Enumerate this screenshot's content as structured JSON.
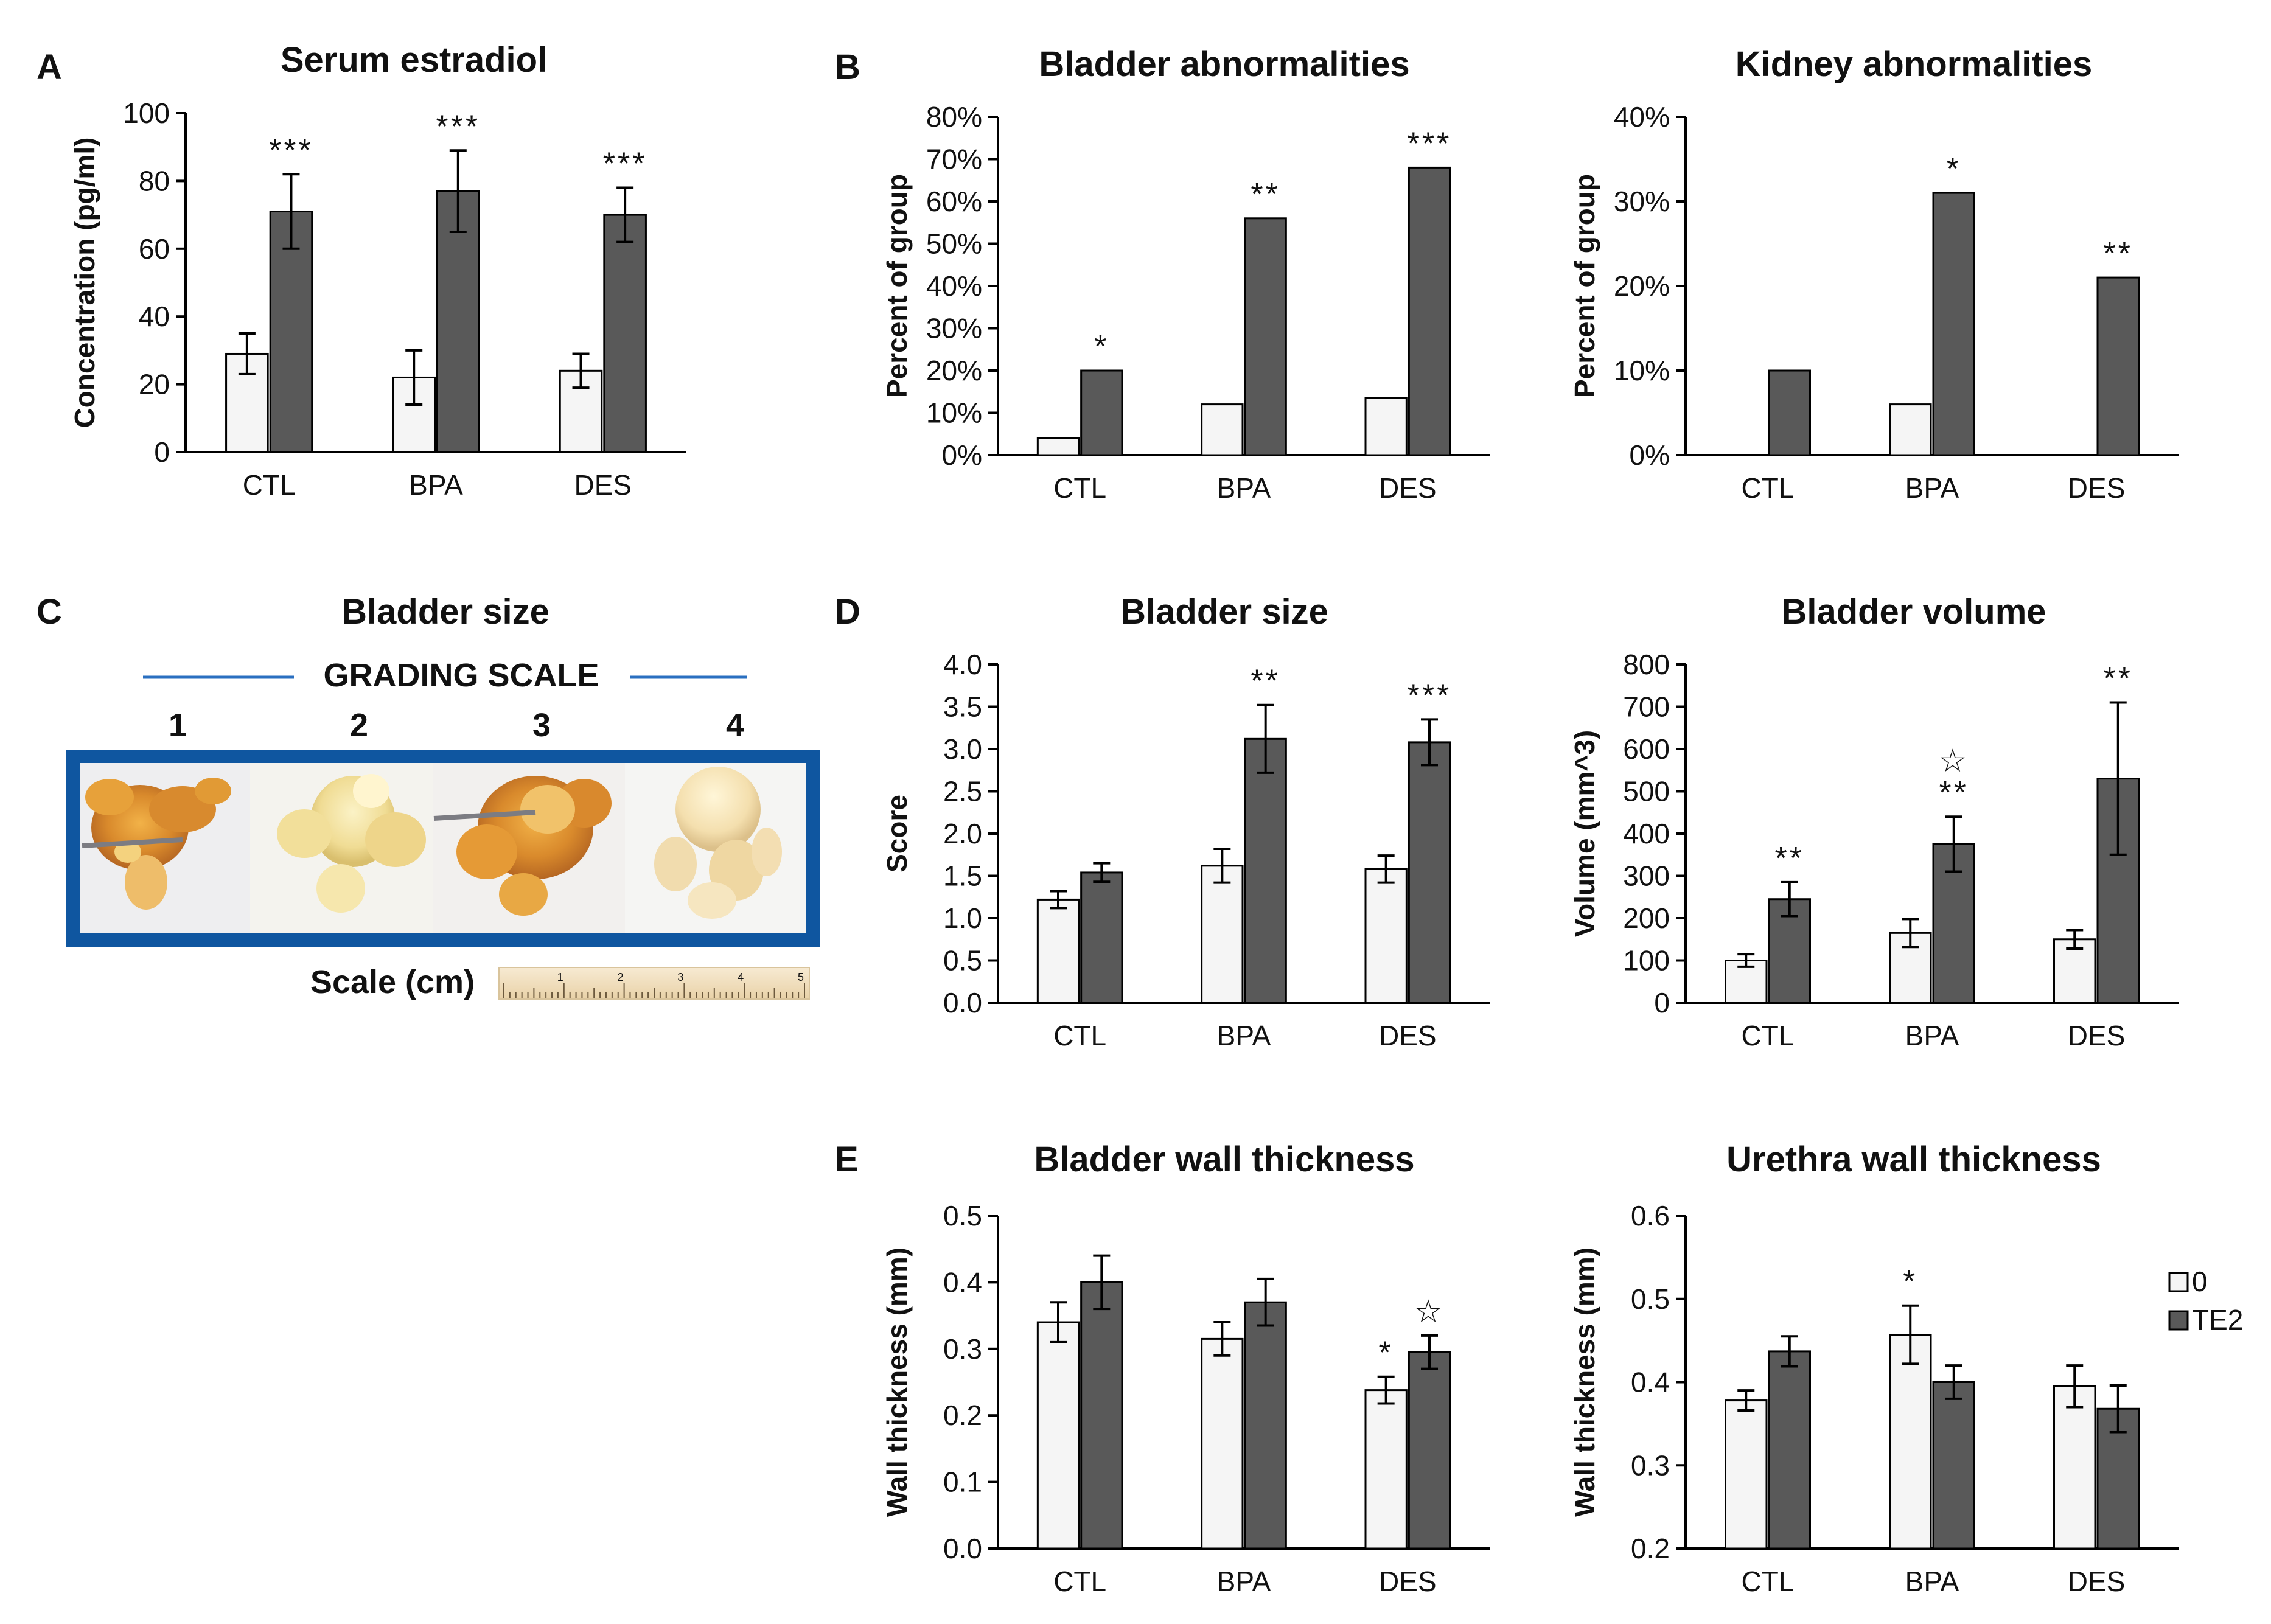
{
  "panel_letters": {
    "A": "A",
    "B": "B",
    "C": "C",
    "D": "D",
    "E": "E"
  },
  "legend": {
    "items": [
      {
        "label": "0",
        "color": "#f5f5f5"
      },
      {
        "label": "TE2",
        "color": "#595959"
      }
    ]
  },
  "colors": {
    "control_bar": "#f5f5f5",
    "treated_bar": "#595959",
    "frame_blue": "#0f56a0",
    "rule_blue": "#2a6fc0"
  },
  "panel_c": {
    "title": "Bladder size",
    "grading_label": "GRADING SCALE",
    "grades": [
      "1",
      "2",
      "3",
      "4"
    ],
    "scale_label": "Scale (cm)",
    "ruler_marks": [
      "1",
      "2",
      "3",
      "4",
      "5"
    ]
  },
  "chart_data": [
    {
      "id": "serum-estradiol",
      "type": "bar",
      "title": "Serum estradiol",
      "ylabel": "Concentration (pg/ml)",
      "categories": [
        "CTL",
        "BPA",
        "DES"
      ],
      "ylim": [
        0,
        100
      ],
      "yticks": [
        "0",
        "20",
        "40",
        "60",
        "80",
        "100"
      ],
      "series": [
        {
          "name": "0",
          "values": [
            29,
            22,
            24
          ],
          "errors": [
            6,
            8,
            5
          ]
        },
        {
          "name": "TE2",
          "values": [
            71,
            77,
            70
          ],
          "errors": [
            11,
            12,
            8
          ]
        }
      ],
      "annotations": [
        {
          "category": 0,
          "series": 1,
          "text": "***"
        },
        {
          "category": 1,
          "series": 1,
          "text": "***"
        },
        {
          "category": 2,
          "series": 1,
          "text": "***"
        }
      ]
    },
    {
      "id": "bladder-abnormalities",
      "type": "bar",
      "title": "Bladder abnormalities",
      "ylabel": "Percent of group",
      "categories": [
        "CTL",
        "BPA",
        "DES"
      ],
      "ylim": [
        0,
        80
      ],
      "yticks": [
        "0%",
        "10%",
        "20%",
        "30%",
        "40%",
        "50%",
        "60%",
        "70%",
        "80%"
      ],
      "series": [
        {
          "name": "0",
          "values": [
            4,
            12,
            13.5
          ]
        },
        {
          "name": "TE2",
          "values": [
            20,
            56,
            68
          ]
        }
      ],
      "annotations": [
        {
          "category": 0,
          "series": 1,
          "text": "*"
        },
        {
          "category": 1,
          "series": 1,
          "text": "**"
        },
        {
          "category": 2,
          "series": 1,
          "text": "***"
        }
      ]
    },
    {
      "id": "kidney-abnormalities",
      "type": "bar",
      "title": "Kidney abnormalities",
      "ylabel": "Percent of group",
      "categories": [
        "CTL",
        "BPA",
        "DES"
      ],
      "ylim": [
        0,
        40
      ],
      "yticks": [
        "0%",
        "10%",
        "20%",
        "30%",
        "40%"
      ],
      "series": [
        {
          "name": "0",
          "values": [
            0,
            6,
            0
          ]
        },
        {
          "name": "TE2",
          "values": [
            10,
            31,
            21
          ]
        }
      ],
      "annotations": [
        {
          "category": 1,
          "series": 1,
          "text": "*"
        },
        {
          "category": 2,
          "series": 1,
          "text": "**"
        }
      ]
    },
    {
      "id": "bladder-size",
      "type": "bar",
      "title": "Bladder size",
      "ylabel": "Score",
      "categories": [
        "CTL",
        "BPA",
        "DES"
      ],
      "ylim": [
        0,
        4
      ],
      "yticks": [
        "0.0",
        "0.5",
        "1.0",
        "1.5",
        "2.0",
        "2.5",
        "3.0",
        "3.5",
        "4.0"
      ],
      "series": [
        {
          "name": "0",
          "values": [
            1.22,
            1.62,
            1.58
          ],
          "errors": [
            0.1,
            0.2,
            0.16
          ]
        },
        {
          "name": "TE2",
          "values": [
            1.54,
            3.12,
            3.08
          ],
          "errors": [
            0.11,
            0.4,
            0.27
          ]
        }
      ],
      "annotations": [
        {
          "category": 1,
          "series": 1,
          "text": "**"
        },
        {
          "category": 2,
          "series": 1,
          "text": "***"
        }
      ]
    },
    {
      "id": "bladder-volume",
      "type": "bar",
      "title": "Bladder volume",
      "ylabel": "Volume (mm^3)",
      "categories": [
        "CTL",
        "BPA",
        "DES"
      ],
      "ylim": [
        0,
        800
      ],
      "yticks": [
        "0",
        "100",
        "200",
        "300",
        "400",
        "500",
        "600",
        "700",
        "800"
      ],
      "series": [
        {
          "name": "0",
          "values": [
            100,
            165,
            150
          ],
          "errors": [
            15,
            33,
            22
          ]
        },
        {
          "name": "TE2",
          "values": [
            245,
            375,
            530
          ],
          "errors": [
            40,
            65,
            180
          ]
        }
      ],
      "annotations": [
        {
          "category": 0,
          "series": 1,
          "text": "**"
        },
        {
          "category": 1,
          "series": 1,
          "text": "**"
        },
        {
          "category": 1,
          "series": 1,
          "text": "☆",
          "level": 2
        },
        {
          "category": 2,
          "series": 1,
          "text": "**"
        }
      ]
    },
    {
      "id": "bladder-wall-thickness",
      "type": "bar",
      "title": "Bladder wall thickness",
      "ylabel": "Wall thickness (mm)",
      "categories": [
        "CTL",
        "BPA",
        "DES"
      ],
      "ylim": [
        0,
        0.5
      ],
      "yticks": [
        "0.0",
        "0.1",
        "0.2",
        "0.3",
        "0.4",
        "0.5"
      ],
      "series": [
        {
          "name": "0",
          "values": [
            0.34,
            0.315,
            0.238
          ],
          "errors": [
            0.03,
            0.025,
            0.02
          ]
        },
        {
          "name": "TE2",
          "values": [
            0.4,
            0.37,
            0.295
          ],
          "errors": [
            0.04,
            0.035,
            0.025
          ]
        }
      ],
      "annotations": [
        {
          "category": 2,
          "series": 0,
          "text": "*"
        },
        {
          "category": 2,
          "series": 1,
          "text": "☆"
        }
      ]
    },
    {
      "id": "urethra-wall-thickness",
      "type": "bar",
      "title": "Urethra wall thickness",
      "ylabel": "Wall thickness (mm)",
      "categories": [
        "CTL",
        "BPA",
        "DES"
      ],
      "ylim": [
        0.2,
        0.6
      ],
      "yticks": [
        "0.2",
        "0.3",
        "0.4",
        "0.5",
        "0.6"
      ],
      "series": [
        {
          "name": "0",
          "values": [
            0.378,
            0.457,
            0.395
          ],
          "errors": [
            0.012,
            0.035,
            0.025
          ]
        },
        {
          "name": "TE2",
          "values": [
            0.437,
            0.4,
            0.368
          ],
          "errors": [
            0.018,
            0.02,
            0.028
          ]
        }
      ],
      "annotations": [
        {
          "category": 1,
          "series": 0,
          "text": "*"
        }
      ]
    }
  ]
}
